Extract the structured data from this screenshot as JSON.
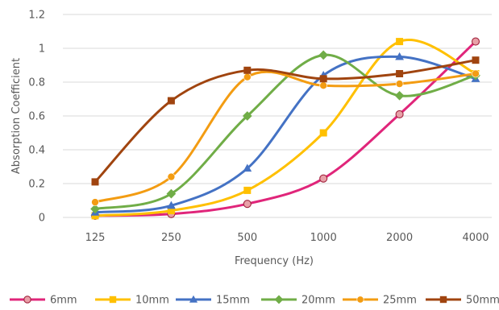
{
  "chart_data": {
    "type": "line",
    "title": "",
    "xlabel": "Frequency (Hz)",
    "ylabel": "Absorption Coefficient",
    "categories": [
      "125",
      "250",
      "500",
      "1000",
      "2000",
      "4000"
    ],
    "yticks": [
      "0",
      "0.2",
      "0.4",
      "0.6",
      "0.8",
      "1",
      "1.2"
    ],
    "ylim": [
      0,
      1.2
    ],
    "grid": "horizontal",
    "legend_position": "bottom",
    "smooth": true,
    "series": [
      {
        "name": "6mm",
        "color": "#E0257A",
        "marker": "circle",
        "values": [
          0.01,
          0.02,
          0.08,
          0.23,
          0.61,
          1.04
        ]
      },
      {
        "name": "10mm",
        "color": "#FFC000",
        "marker": "square",
        "values": [
          0.01,
          0.04,
          0.16,
          0.5,
          1.04,
          0.85
        ]
      },
      {
        "name": "15mm",
        "color": "#4472C4",
        "marker": "triangle",
        "values": [
          0.03,
          0.07,
          0.29,
          0.84,
          0.95,
          0.82
        ]
      },
      {
        "name": "20mm",
        "color": "#70AD47",
        "marker": "diamond",
        "values": [
          0.05,
          0.14,
          0.6,
          0.96,
          0.72,
          0.84
        ]
      },
      {
        "name": "25mm",
        "color": "#F39C12",
        "marker": "circle",
        "values": [
          0.09,
          0.24,
          0.83,
          0.78,
          0.79,
          0.85
        ]
      },
      {
        "name": "50mm",
        "color": "#A0440F",
        "marker": "square",
        "values": [
          0.21,
          0.69,
          0.87,
          0.82,
          0.85,
          0.93
        ]
      }
    ]
  }
}
